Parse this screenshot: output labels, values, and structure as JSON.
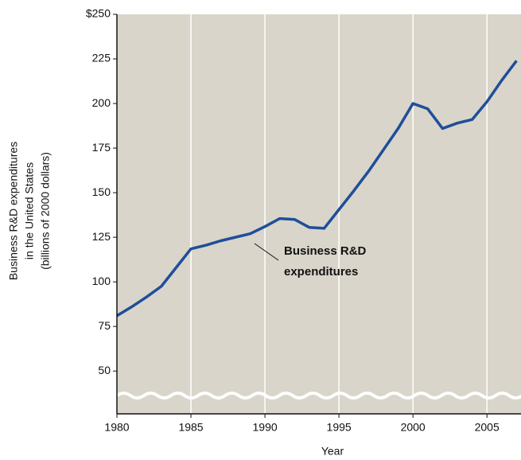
{
  "chart_data": {
    "type": "line",
    "y_label": [
      "Business R&D expenditures",
      "in the United States",
      "(billions of 2000 dollars)"
    ],
    "x_label": "Year",
    "annotation": [
      "Business R&D",
      "expenditures"
    ],
    "x": [
      1980,
      1981,
      1982,
      1983,
      1984,
      1985,
      1986,
      1987,
      1988,
      1989,
      1990,
      1991,
      1992,
      1993,
      1994,
      1995,
      1996,
      1997,
      1998,
      1999,
      2000,
      2001,
      2002,
      2003,
      2004,
      2005,
      2006,
      2007
    ],
    "series": [
      {
        "name": "Business R&D expenditures",
        "color": "#1f4e9a",
        "values": [
          81,
          86,
          91.5,
          97.5,
          108,
          118.5,
          120.5,
          123,
          125,
          127,
          131,
          135.5,
          135,
          130.5,
          130,
          140.5,
          151,
          162,
          174,
          186,
          200,
          197,
          186,
          189,
          191,
          201,
          213,
          224
        ]
      }
    ],
    "xlim": [
      1980,
      2007.3
    ],
    "ylim": [
      26,
      250
    ],
    "xticks": [
      1980,
      1985,
      1990,
      1995,
      2000,
      2005
    ],
    "yticks": [
      {
        "value": 250,
        "label": "$250"
      },
      225,
      200,
      175,
      150,
      125,
      100,
      75,
      50
    ],
    "grid": true
  }
}
